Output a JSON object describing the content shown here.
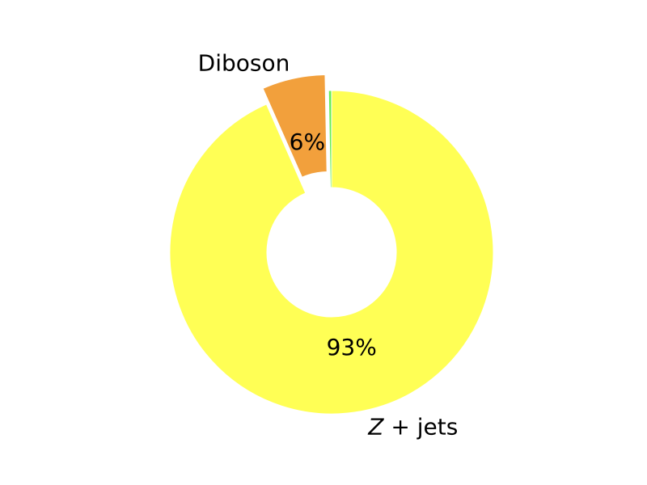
{
  "chart_data": {
    "type": "pie",
    "donut": true,
    "slices": [
      {
        "label": "Z + jets",
        "label_var": "Z",
        "label_rest": " + jets",
        "value": 93.4,
        "pct_text": "93%",
        "color": "#ffff55",
        "explode": false
      },
      {
        "label": "Diboson",
        "label_var": "",
        "label_rest": "Diboson",
        "value": 6.3,
        "pct_text": "6%",
        "color": "#f2a03c",
        "explode": true
      },
      {
        "label": "",
        "label_var": "",
        "label_rest": "",
        "value": 0.3,
        "pct_text": "",
        "color": "#66ee55",
        "explode": false
      }
    ],
    "start_angle_deg": 90,
    "direction": "clockwise",
    "legend": "none"
  }
}
